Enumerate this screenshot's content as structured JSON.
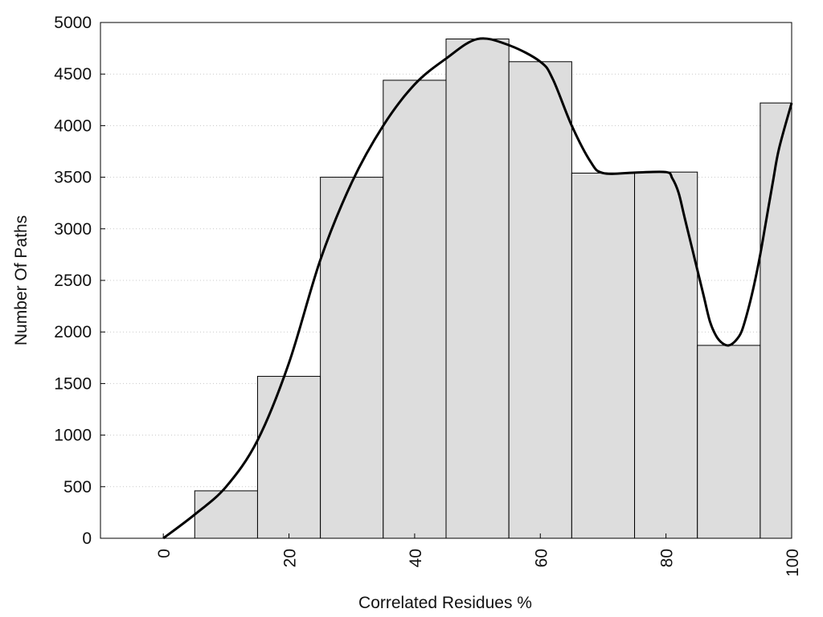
{
  "chart_data": {
    "type": "bar",
    "title": "",
    "xlabel": "Correlated Residues %",
    "ylabel": "Number Of Paths",
    "xlim": [
      -10,
      100
    ],
    "ylim": [
      0,
      5000
    ],
    "grid": "horizontal dotted",
    "x_ticks": [
      "0",
      "20",
      "40",
      "60",
      "80",
      "100"
    ],
    "y_ticks": [
      "0",
      "500",
      "1000",
      "1500",
      "2000",
      "2500",
      "3000",
      "3500",
      "4000",
      "4500",
      "5000"
    ],
    "bars": [
      {
        "x_start": -5,
        "x_end": 5,
        "value": 0
      },
      {
        "x_start": 5,
        "x_end": 15,
        "value": 460
      },
      {
        "x_start": 15,
        "x_end": 25,
        "value": 1570
      },
      {
        "x_start": 25,
        "x_end": 35,
        "value": 3500
      },
      {
        "x_start": 35,
        "x_end": 45,
        "value": 4440
      },
      {
        "x_start": 45,
        "x_end": 55,
        "value": 4840
      },
      {
        "x_start": 55,
        "x_end": 65,
        "value": 4620
      },
      {
        "x_start": 65,
        "x_end": 75,
        "value": 3540
      },
      {
        "x_start": 75,
        "x_end": 85,
        "value": 3550
      },
      {
        "x_start": 85,
        "x_end": 95,
        "value": 1870
      },
      {
        "x_start": 95,
        "x_end": 100,
        "value": 4220
      }
    ],
    "curve": {
      "x": [
        0,
        5,
        10,
        15,
        20,
        25,
        30,
        35,
        40,
        45,
        50,
        55,
        60,
        62,
        65,
        68,
        70,
        75,
        80,
        81,
        82,
        83,
        85,
        86,
        87,
        88,
        89,
        90,
        91,
        92,
        93,
        94,
        95,
        96,
        97,
        98,
        100
      ],
      "y": [
        0,
        230,
        500,
        950,
        1700,
        2700,
        3450,
        4000,
        4400,
        4650,
        4840,
        4780,
        4620,
        4450,
        4000,
        3650,
        3540,
        3545,
        3550,
        3490,
        3350,
        3100,
        2600,
        2350,
        2100,
        1960,
        1890,
        1870,
        1910,
        2000,
        2200,
        2450,
        2750,
        3100,
        3450,
        3780,
        4220
      ]
    },
    "colors": {
      "bar_fill": "#dddddd",
      "bar_stroke": "#000000",
      "curve": "#000000",
      "grid": "#c8c8c8"
    }
  }
}
